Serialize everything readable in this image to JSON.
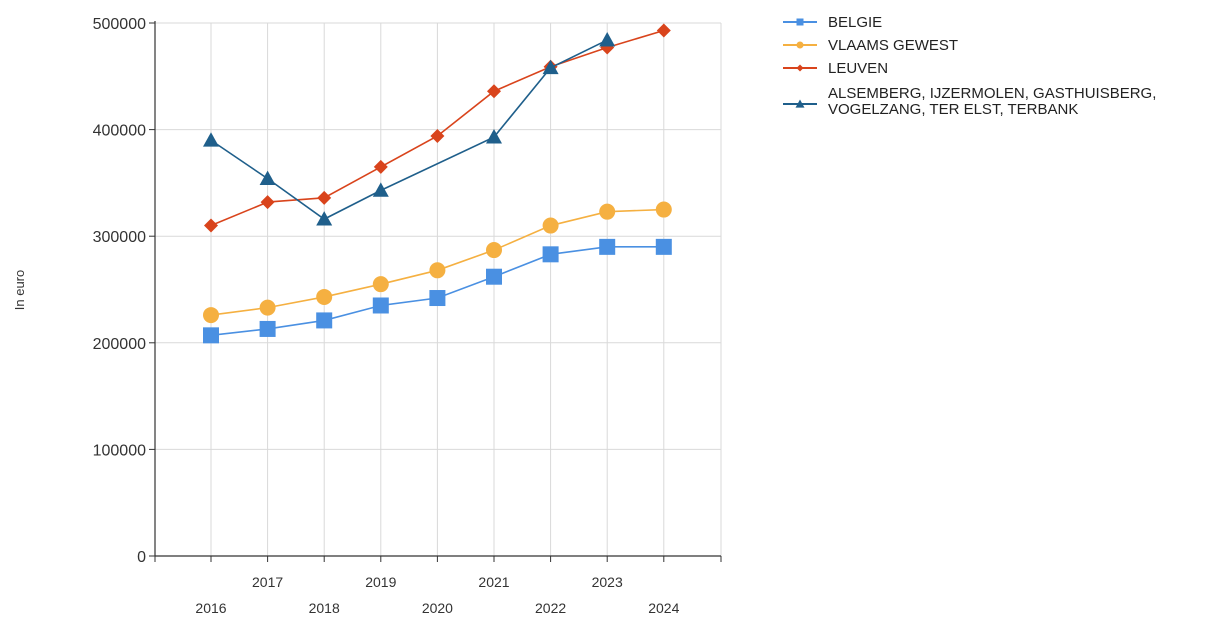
{
  "chart_data": {
    "type": "line",
    "ylabel": "In euro",
    "ylim": [
      0,
      500000
    ],
    "y_ticks": [
      0,
      100000,
      200000,
      300000,
      400000,
      500000
    ],
    "y_tick_labels": [
      "0",
      "100000",
      "200000",
      "300000",
      "400000",
      "500000"
    ],
    "grid": true,
    "legend_position": "top-right",
    "categories": [
      "2016",
      "2017",
      "2018",
      "2019",
      "2020",
      "2021",
      "2022",
      "2023",
      "2024"
    ],
    "series": [
      {
        "name": "BELGIE",
        "color": "#4a90e2",
        "marker": "square",
        "values": [
          207000,
          213000,
          221000,
          235000,
          242000,
          262000,
          283000,
          290000,
          290000
        ]
      },
      {
        "name": "VLAAMS GEWEST",
        "color": "#f5b041",
        "marker": "circle",
        "values": [
          226000,
          233000,
          243000,
          255000,
          268000,
          287000,
          310000,
          323000,
          325000
        ]
      },
      {
        "name": "LEUVEN",
        "color": "#d9441c",
        "marker": "diamond",
        "values": [
          310000,
          332000,
          336000,
          365000,
          394000,
          436000,
          459000,
          477000,
          493000
        ]
      },
      {
        "name_lines": [
          "ALSEMBERG, IJZERMOLEN, GASTHUISBERG,",
          "VOGELZANG, TER ELST, TERBANK"
        ],
        "color": "#1f5f8b",
        "marker": "triangle",
        "values": [
          390000,
          354000,
          316000,
          343000,
          null,
          393000,
          458000,
          484000,
          null
        ]
      }
    ]
  }
}
